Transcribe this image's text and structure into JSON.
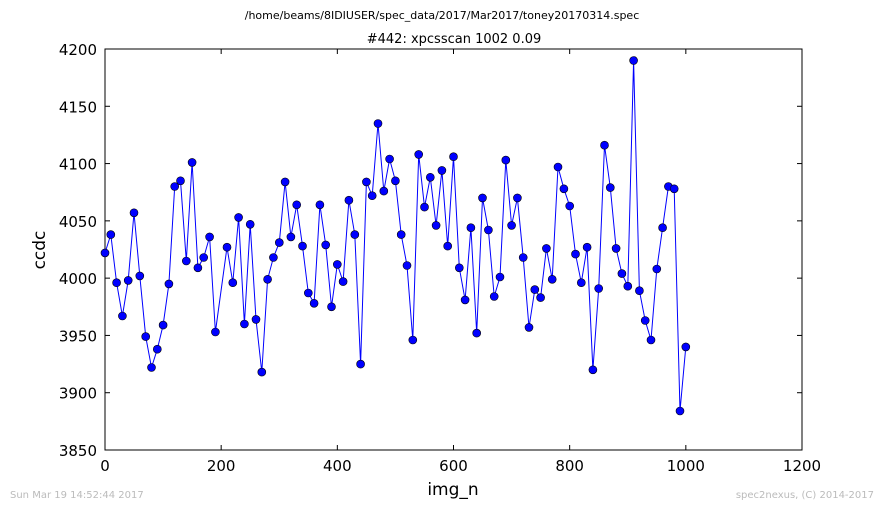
{
  "chart_data": {
    "type": "line",
    "suptitle": "/home/beams/8IDIUSER/spec_data/2017/Mar2017/toney20170314.spec",
    "title": "#442: xpcsscan 1002 0.09",
    "xlabel": "img_n",
    "ylabel": "ccdc",
    "xlim": [
      0,
      1200
    ],
    "ylim": [
      3850,
      4200
    ],
    "xticks": [
      0,
      200,
      400,
      600,
      800,
      1000,
      1200
    ],
    "yticks": [
      3850,
      3900,
      3950,
      4000,
      4050,
      4100,
      4150,
      4200
    ],
    "grid": false,
    "series": [
      {
        "color": "#0000ff",
        "marker": "circle",
        "x": [
          0,
          10,
          20,
          30,
          40,
          50,
          60,
          70,
          80,
          90,
          100,
          110,
          120,
          130,
          140,
          150,
          160,
          170,
          180,
          190,
          210,
          220,
          230,
          240,
          250,
          260,
          270,
          280,
          290,
          300,
          310,
          320,
          330,
          340,
          350,
          360,
          370,
          380,
          390,
          400,
          410,
          420,
          430,
          440,
          450,
          460,
          470,
          480,
          490,
          500,
          510,
          520,
          530,
          540,
          550,
          560,
          570,
          580,
          590,
          600,
          610,
          620,
          630,
          640,
          650,
          660,
          670,
          680,
          690,
          700,
          710,
          720,
          730,
          740,
          750,
          760,
          770,
          780,
          790,
          800,
          810,
          820,
          830,
          840,
          850,
          860,
          870,
          880,
          890,
          900,
          910,
          920,
          930,
          940,
          950,
          960,
          970,
          980,
          990,
          1000
        ],
        "y": [
          4022,
          4038,
          3996,
          3967,
          3998,
          4057,
          4002,
          3949,
          3922,
          3938,
          3959,
          3995,
          4080,
          4085,
          4015,
          4101,
          4009,
          4018,
          4036,
          3953,
          4027,
          3996,
          4053,
          3960,
          4047,
          3964,
          3918,
          3999,
          4018,
          4031,
          4084,
          4036,
          4064,
          4028,
          3987,
          3978,
          4064,
          4029,
          3975,
          4012,
          3997,
          4068,
          4038,
          3925,
          4084,
          4072,
          4135,
          4076,
          4104,
          4085,
          4038,
          4011,
          3946,
          4108,
          4062,
          4088,
          4046,
          4094,
          4028,
          4106,
          4009,
          3981,
          4044,
          3952,
          4070,
          4042,
          3984,
          4001,
          4103,
          4046,
          4070,
          4018,
          3957,
          3990,
          3983,
          4026,
          3999,
          4097,
          4078,
          4063,
          4021,
          3996,
          4027,
          3920,
          3991,
          4116,
          4079,
          4026,
          4004,
          3993,
          4190,
          3989,
          3963,
          3946,
          4008,
          4044,
          4080,
          4078,
          3884,
          3940
        ]
      }
    ]
  },
  "footer": {
    "timestamp": "Sun Mar 19 14:52:44 2017",
    "credit": "spec2nexus, (C) 2014-2017"
  }
}
